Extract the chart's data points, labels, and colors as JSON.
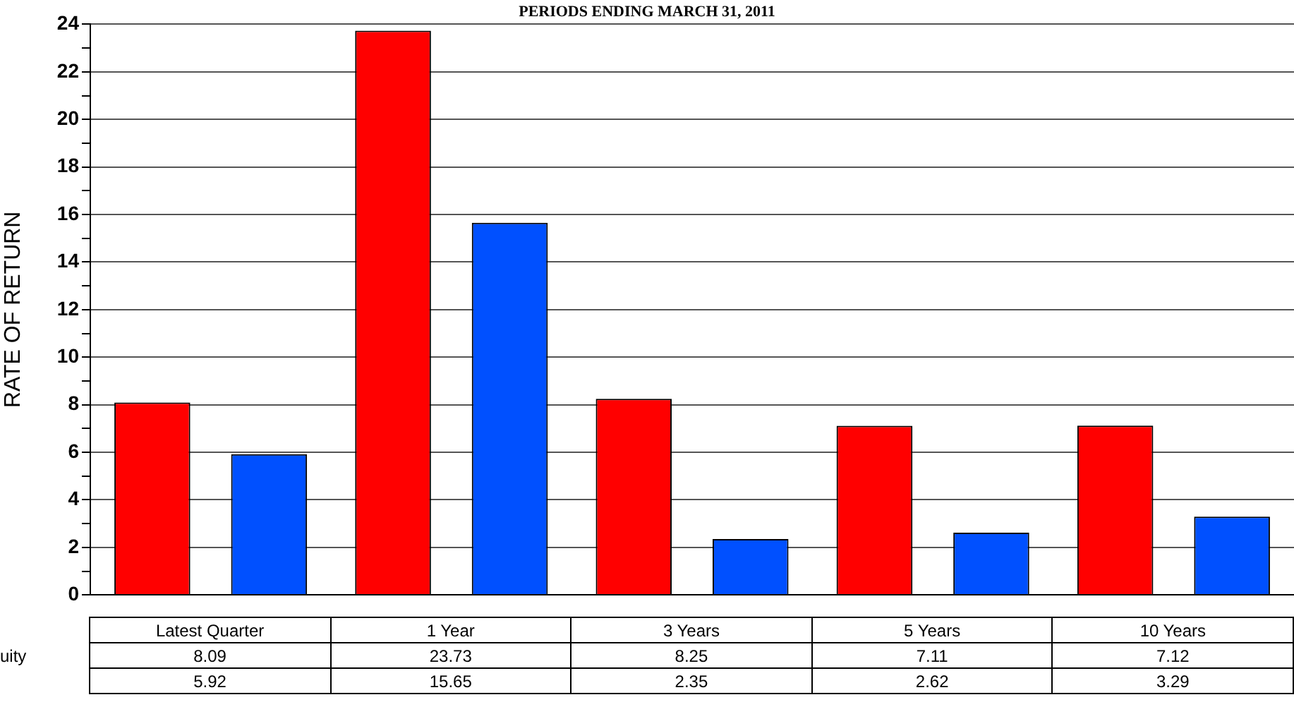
{
  "chart_data": {
    "type": "bar",
    "subtitle": "PERIODS ENDING MARCH 31, 2011",
    "ylabel": "RATE OF RETURN",
    "categories": [
      "Latest Quarter",
      "1 Year",
      "3 Years",
      "5 Years",
      "10 Years"
    ],
    "series": [
      {
        "name": "uity",
        "color": "#ff0000",
        "values": [
          8.09,
          23.73,
          8.25,
          7.11,
          7.12
        ]
      },
      {
        "color": "#0050ff",
        "values": [
          5.92,
          15.65,
          2.35,
          2.62,
          3.29
        ]
      }
    ],
    "ylim": [
      0,
      24
    ],
    "yticks": [
      0,
      {
        "value": 1,
        "label": null
      },
      2,
      {
        "value": 3,
        "label": null
      },
      4,
      {
        "value": 5,
        "label": null
      },
      6,
      {
        "value": 7,
        "label": null
      },
      8,
      {
        "value": 9,
        "label": null
      },
      10,
      {
        "value": 11,
        "label": null
      },
      12,
      {
        "value": 13,
        "label": null
      },
      14,
      {
        "value": 15,
        "label": null
      },
      16,
      {
        "value": 17,
        "label": null
      },
      18,
      {
        "value": 19,
        "label": null
      },
      20,
      {
        "value": 21,
        "label": null
      },
      22,
      {
        "value": 23,
        "label": null
      },
      24
    ],
    "grid": "y",
    "legend": false,
    "data_labels": true
  }
}
